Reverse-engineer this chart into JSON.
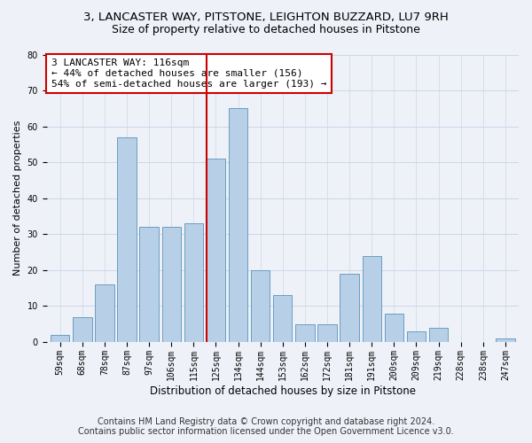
{
  "title_line1": "3, LANCASTER WAY, PITSTONE, LEIGHTON BUZZARD, LU7 9RH",
  "title_line2": "Size of property relative to detached houses in Pitstone",
  "xlabel": "Distribution of detached houses by size in Pitstone",
  "ylabel": "Number of detached properties",
  "categories": [
    "59sqm",
    "68sqm",
    "78sqm",
    "87sqm",
    "97sqm",
    "106sqm",
    "115sqm",
    "125sqm",
    "134sqm",
    "144sqm",
    "153sqm",
    "162sqm",
    "172sqm",
    "181sqm",
    "191sqm",
    "200sqm",
    "209sqm",
    "219sqm",
    "228sqm",
    "238sqm",
    "247sqm"
  ],
  "bar_heights": [
    2,
    7,
    16,
    57,
    32,
    32,
    33,
    51,
    65,
    20,
    13,
    5,
    5,
    19,
    24,
    8,
    3,
    4,
    0,
    0,
    1
  ],
  "bar_color": "#b8cfe8",
  "bar_edge_color": "#6a9ec0",
  "vline_x_index": 7,
  "vline_color": "#cc0000",
  "annotation_text": "3 LANCASTER WAY: 116sqm\n← 44% of detached houses are smaller (156)\n54% of semi-detached houses are larger (193) →",
  "annotation_box_color": "#ffffff",
  "annotation_box_edge_color": "#cc0000",
  "ylim": [
    0,
    80
  ],
  "yticks": [
    0,
    10,
    20,
    30,
    40,
    50,
    60,
    70,
    80
  ],
  "grid_color": "#ccd6e8",
  "background_color": "#eef2f8",
  "footer_line1": "Contains HM Land Registry data © Crown copyright and database right 2024.",
  "footer_line2": "Contains public sector information licensed under the Open Government Licence v3.0.",
  "title_fontsize": 9.5,
  "subtitle_fontsize": 9,
  "xlabel_fontsize": 8.5,
  "ylabel_fontsize": 8,
  "tick_fontsize": 7,
  "annotation_fontsize": 8,
  "footer_fontsize": 7
}
